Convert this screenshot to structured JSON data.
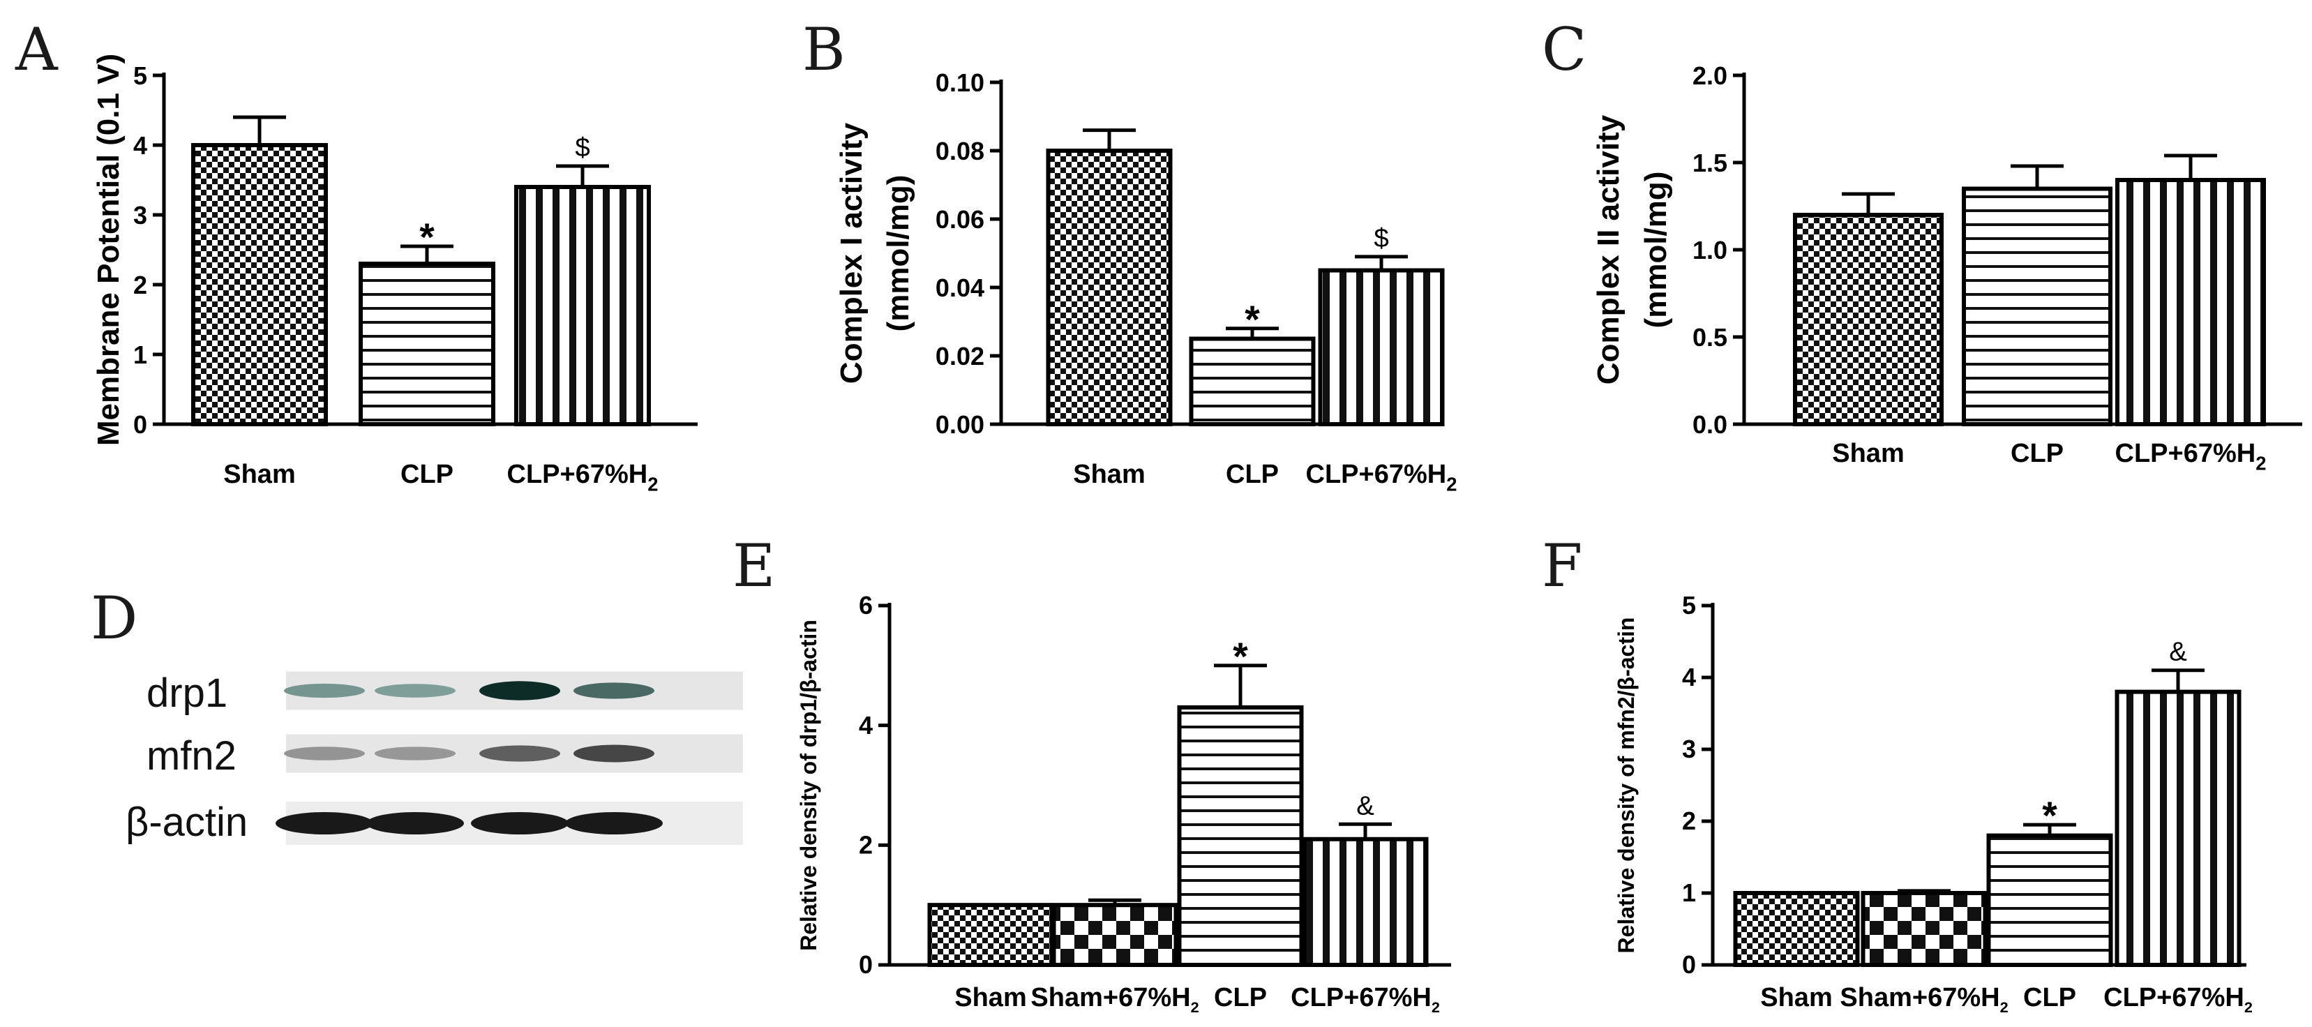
{
  "panel_labels": [
    "A",
    "B",
    "C",
    "D",
    "E",
    "F"
  ],
  "chart_data": [
    {
      "panel": "A",
      "type": "bar",
      "title": "",
      "ylabel": "Membrane Potential (0.1 V)",
      "xlabel": "",
      "ylim": [
        0,
        5
      ],
      "yticks": [
        "0",
        "1",
        "2",
        "3",
        "4",
        "5"
      ],
      "categories": [
        "Sham",
        "CLP",
        "CLP+67%H2"
      ],
      "values": [
        4.0,
        2.3,
        3.4
      ],
      "errors": [
        0.4,
        0.25,
        0.3
      ],
      "annotations": [
        "",
        "*",
        "$"
      ],
      "patterns": [
        "checker",
        "hlines",
        "vlines"
      ]
    },
    {
      "panel": "B",
      "type": "bar",
      "title": "",
      "ylabel": "Complex I activity",
      "ylabel2": "(mmol/mg)",
      "xlabel": "",
      "ylim": [
        0,
        0.1
      ],
      "yticks": [
        "0.00",
        "0.02",
        "0.04",
        "0.06",
        "0.08",
        "0.10"
      ],
      "categories": [
        "Sham",
        "CLP",
        "CLP+67%H2"
      ],
      "values": [
        0.08,
        0.025,
        0.045
      ],
      "errors": [
        0.006,
        0.003,
        0.004
      ],
      "annotations": [
        "",
        "*",
        "$"
      ],
      "patterns": [
        "checker",
        "hlines",
        "vlines"
      ]
    },
    {
      "panel": "C",
      "type": "bar",
      "title": "",
      "ylabel": "Complex II activity",
      "ylabel2": "(mmol/mg)",
      "xlabel": "",
      "ylim": [
        0,
        2.0
      ],
      "yticks": [
        "0.0",
        "0.5",
        "1.0",
        "1.5",
        "2.0"
      ],
      "categories": [
        "Sham",
        "CLP",
        "CLP+67%H2"
      ],
      "values": [
        1.2,
        1.35,
        1.4
      ],
      "errors": [
        0.12,
        0.13,
        0.14
      ],
      "annotations": [
        "",
        "",
        ""
      ],
      "patterns": [
        "checker",
        "hlines",
        "vlines"
      ]
    },
    {
      "panel": "E",
      "type": "bar",
      "title": "",
      "ylabel": "Relative density of drp1/β-actin",
      "xlabel": "",
      "ylim": [
        0,
        6
      ],
      "yticks": [
        "0",
        "2",
        "4",
        "6"
      ],
      "categories": [
        "Sham",
        "Sham+67%H2",
        "CLP",
        "CLP+67%H2"
      ],
      "values": [
        1.0,
        1.0,
        4.3,
        2.1
      ],
      "errors": [
        0.0,
        0.08,
        0.7,
        0.25
      ],
      "annotations": [
        "",
        "",
        "*",
        "&"
      ],
      "patterns": [
        "checker",
        "bigchecker",
        "hlines",
        "vlines"
      ]
    },
    {
      "panel": "F",
      "type": "bar",
      "title": "",
      "ylabel": "Relative density of mfn2/β-actin",
      "xlabel": "",
      "ylim": [
        0,
        5
      ],
      "yticks": [
        "0",
        "1",
        "2",
        "3",
        "4",
        "5"
      ],
      "categories": [
        "Sham",
        "Sham+67%H2",
        "CLP",
        "CLP+67%H2"
      ],
      "values": [
        1.0,
        1.0,
        1.8,
        3.8
      ],
      "errors": [
        0.0,
        0.03,
        0.15,
        0.3
      ],
      "annotations": [
        "",
        "",
        "*",
        "&"
      ],
      "patterns": [
        "checker",
        "bigchecker",
        "hlines",
        "vlines"
      ]
    }
  ],
  "blot": {
    "panel": "D",
    "rows": [
      {
        "label": "drp1",
        "intensities": [
          0.35,
          0.3,
          0.95,
          0.6
        ]
      },
      {
        "label": "mfn2",
        "intensities": [
          0.3,
          0.28,
          0.6,
          0.75
        ]
      },
      {
        "label": "β-actin",
        "intensities": [
          1.0,
          1.0,
          1.0,
          1.0
        ]
      }
    ]
  }
}
